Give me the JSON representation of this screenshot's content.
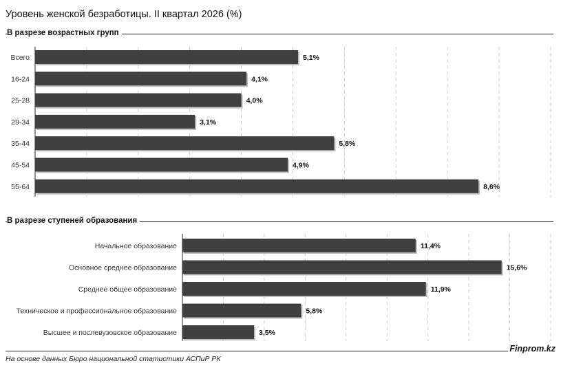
{
  "title": "Уровень женской безработицы. II квартал 2026 (%)",
  "source": "На основе данных Бюро национальной статистики АСПиР РК",
  "brand": "Finprom.kz",
  "colors": {
    "bar": "#404040",
    "grid": "#cfcfcf",
    "text": "#111111"
  },
  "chart_data": [
    {
      "type": "bar",
      "orientation": "horizontal",
      "title": "В разрезе возрастных групп",
      "categories": [
        "Всего",
        "16-24",
        "25-28",
        "29-34",
        "35-44",
        "45-54",
        "55-64"
      ],
      "values": [
        5.1,
        4.1,
        4.0,
        3.1,
        5.8,
        4.9,
        8.6
      ],
      "value_labels": [
        "5,1%",
        "4,1%",
        "4,0%",
        "3,1%",
        "5,8%",
        "4,9%",
        "8,6%"
      ],
      "xlim": [
        0,
        10
      ],
      "grid": true
    },
    {
      "type": "bar",
      "orientation": "horizontal",
      "title": "В разрезе ступеней образования",
      "categories": [
        "Начальное образование",
        "Основное среднее образование",
        "Среднее общее образование",
        "Техническое и профессиональное образование",
        "Высшее и послевузовское образование"
      ],
      "values": [
        11.4,
        15.6,
        11.9,
        5.8,
        3.5
      ],
      "value_labels": [
        "11,4%",
        "15,6%",
        "11,9%",
        "5,8%",
        "3,5%"
      ],
      "xlim": [
        0,
        18
      ],
      "grid": true
    }
  ]
}
